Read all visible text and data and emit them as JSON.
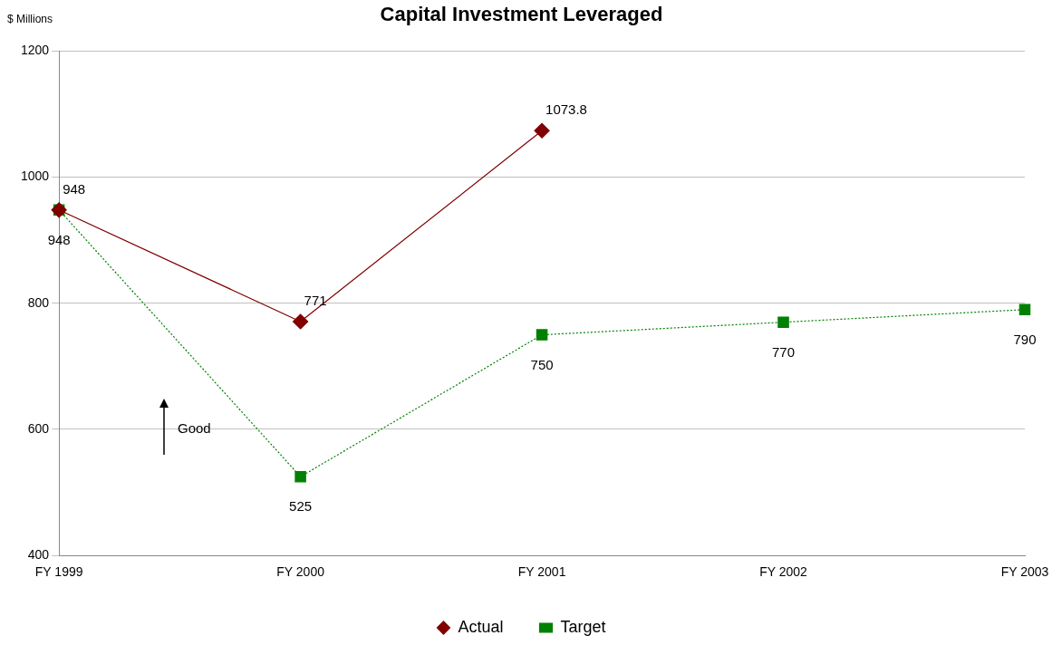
{
  "chart_data": {
    "type": "line",
    "title": "Capital Investment Leveraged",
    "ylabel": "$ Millions",
    "categories": [
      "FY 1999",
      "FY 2000",
      "FY 2001",
      "FY 2002",
      "FY 2003"
    ],
    "series": [
      {
        "name": "Actual",
        "color": "#800000",
        "values": [
          948,
          771,
          1073.8,
          null,
          null
        ],
        "marker": "diamond",
        "line_style": "solid"
      },
      {
        "name": "Target",
        "color": "#008000",
        "values": [
          948,
          525,
          750,
          770,
          790
        ],
        "marker": "square",
        "line_style": "dotted"
      }
    ],
    "ylim": [
      400,
      1200
    ],
    "yticks": [
      400,
      600,
      800,
      1000,
      1200
    ],
    "grid": "y",
    "legend": "bottom",
    "data_labels": true,
    "annotations": [
      "Good"
    ]
  }
}
